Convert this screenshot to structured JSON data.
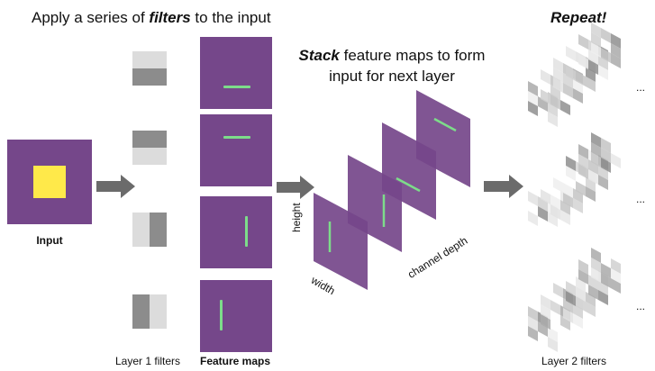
{
  "title": {
    "prefix": "Apply a series of ",
    "emphasis": "filters",
    "suffix": " to the input"
  },
  "stack_text": {
    "emphasis": "Stack",
    "line1_rest": " feature maps to form",
    "line2": "input for next layer"
  },
  "repeat_label": "Repeat!",
  "labels": {
    "input": "Input",
    "layer1_filters": "Layer 1 filters",
    "feature_maps": "Feature maps",
    "layer2_filters": "Layer 2 filters",
    "height": "height",
    "width": "width",
    "channel_depth": "channel depth",
    "ellipsis": "..."
  },
  "colors": {
    "purple": "#75478a",
    "yellow": "#ffe94a",
    "green_line": "#7ddc8a",
    "filter_light": "#dcdcdc",
    "filter_dark": "#8c8c8c",
    "arrow": "#6b6b6b"
  }
}
